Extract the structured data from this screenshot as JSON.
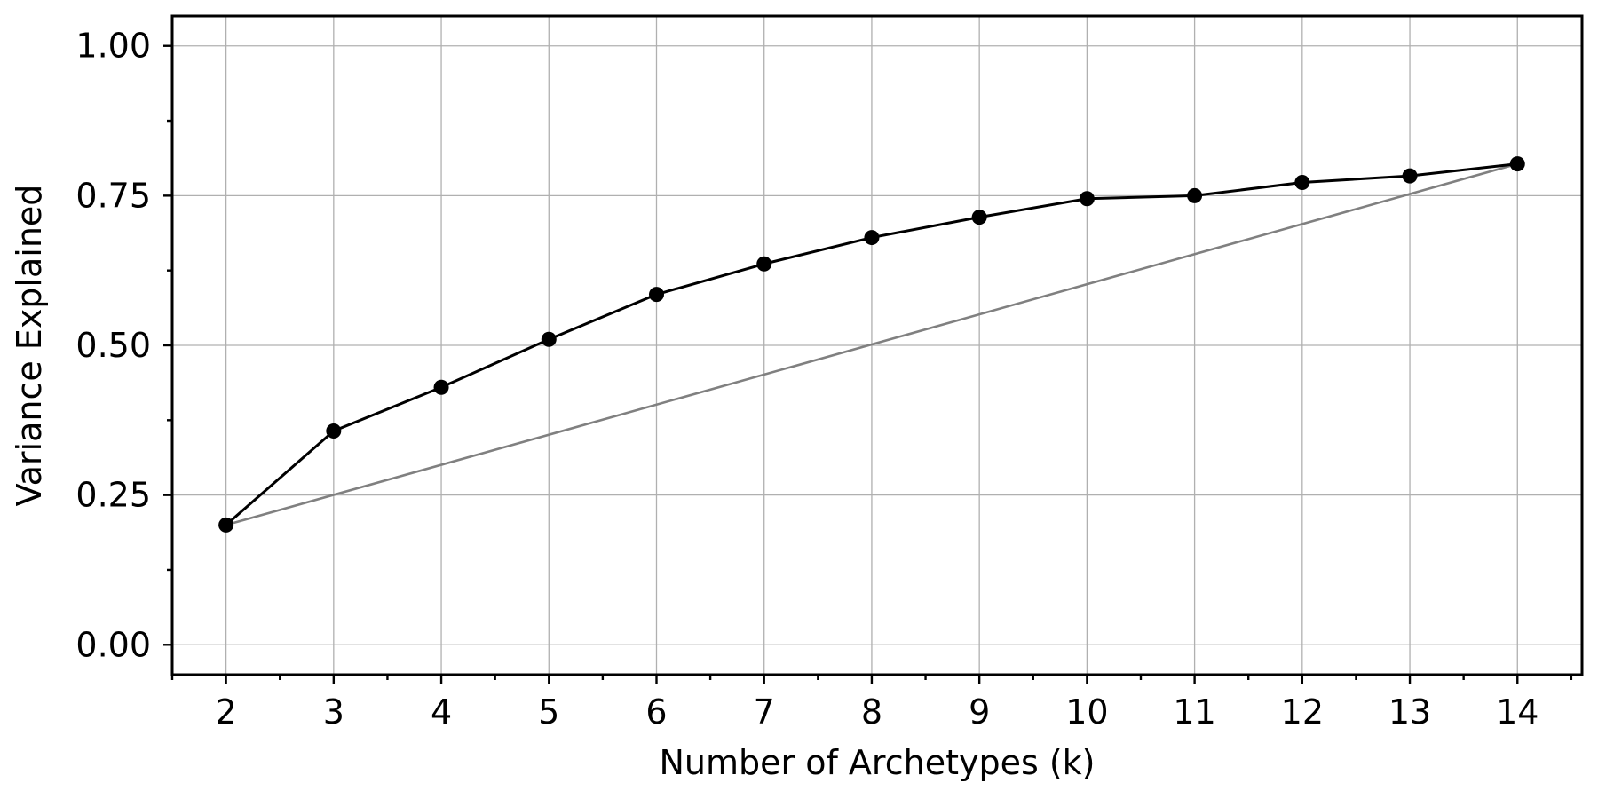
{
  "chart_data": {
    "type": "line",
    "xlabel": "Number of Archetypes (k)",
    "ylabel": "Variance Explained",
    "xlim": [
      1.5,
      14.6
    ],
    "ylim": [
      -0.05,
      1.05
    ],
    "x_ticks": [
      2,
      3,
      4,
      5,
      6,
      7,
      8,
      9,
      10,
      11,
      12,
      13,
      14
    ],
    "x_minor_ticks": [
      1.5,
      2.5,
      3.5,
      4.5,
      5.5,
      6.5,
      7.5,
      8.5,
      9.5,
      10.5,
      11.5,
      12.5,
      13.5,
      14.5
    ],
    "y_ticks": [
      0.0,
      0.25,
      0.5,
      0.75,
      1.0
    ],
    "y_tick_labels": [
      "0.00",
      "0.25",
      "0.50",
      "0.75",
      "1.00"
    ],
    "y_minor_ticks": [
      0.125,
      0.375,
      0.625,
      0.875
    ],
    "grid": true,
    "legend": "none",
    "series": [
      {
        "color": "#000000",
        "marker": "circle",
        "x": [
          2,
          3,
          4,
          5,
          6,
          7,
          8,
          9,
          10,
          11,
          12,
          13,
          14
        ],
        "y": [
          0.2,
          0.357,
          0.43,
          0.51,
          0.585,
          0.636,
          0.68,
          0.714,
          0.745,
          0.75,
          0.772,
          0.783,
          0.803
        ]
      },
      {
        "color": "#808080",
        "marker": "none",
        "x": [
          2,
          14
        ],
        "y": [
          0.2,
          0.803
        ]
      }
    ]
  }
}
